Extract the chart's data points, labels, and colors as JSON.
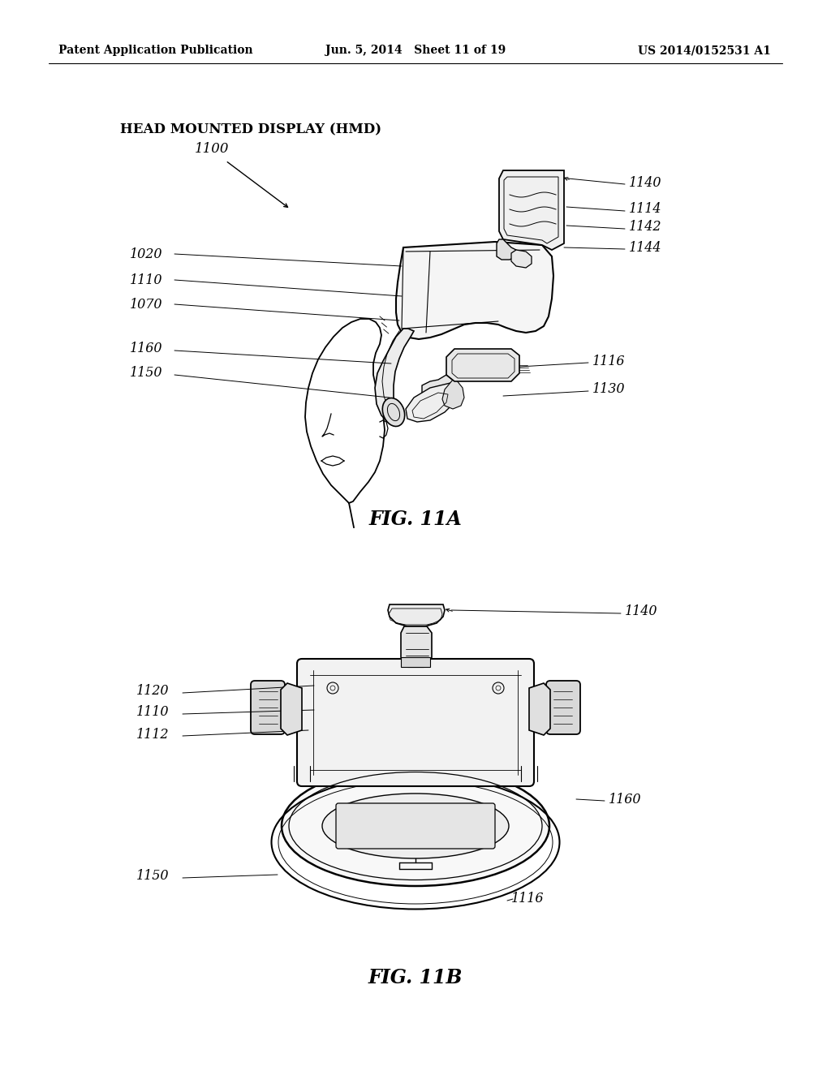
{
  "bg_color": "#ffffff",
  "header_left": "Patent Application Publication",
  "header_center": "Jun. 5, 2014   Sheet 11 of 19",
  "header_right": "US 2014/0152531 A1",
  "fig11a_label": "FIG. 11A",
  "fig11b_label": "FIG. 11B",
  "title_hmd": "HEAD MOUNTED DISPLAY (HMD)",
  "lc": "black",
  "lw_main": 1.3,
  "lw_thin": 0.7,
  "lw_leader": 0.7,
  "fs_label": 11.5,
  "fs_fig": 17,
  "fs_header": 10
}
